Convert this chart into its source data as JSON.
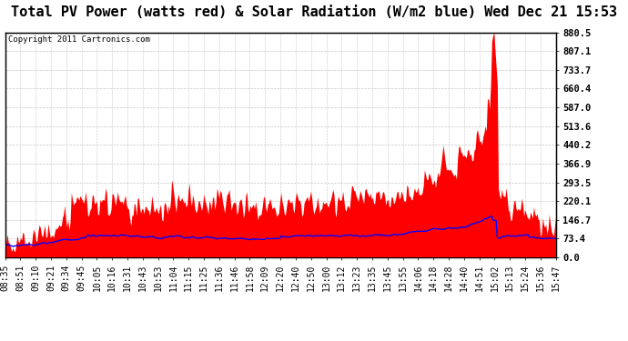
{
  "title": "Total PV Power (watts red) & Solar Radiation (W/m2 blue) Wed Dec 21 15:53",
  "copyright": "Copyright 2011 Cartronics.com",
  "y_max": 880.5,
  "y_min": 0.0,
  "y_ticks": [
    0.0,
    73.4,
    146.7,
    220.1,
    293.5,
    366.9,
    440.2,
    513.6,
    587.0,
    660.4,
    733.7,
    807.1,
    880.5
  ],
  "x_labels": [
    "08:35",
    "08:51",
    "09:10",
    "09:21",
    "09:34",
    "09:45",
    "10:05",
    "10:16",
    "10:31",
    "10:43",
    "10:53",
    "11:04",
    "11:15",
    "11:25",
    "11:36",
    "11:46",
    "11:58",
    "12:09",
    "12:20",
    "12:40",
    "12:50",
    "13:00",
    "13:12",
    "13:23",
    "13:35",
    "13:45",
    "13:55",
    "14:06",
    "14:18",
    "14:28",
    "14:40",
    "14:51",
    "15:02",
    "15:13",
    "15:24",
    "15:36",
    "15:47"
  ],
  "bg_color": "#ffffff",
  "grid_color": "#c8c8c8",
  "red_color": "#ff0000",
  "blue_color": "#0000ff",
  "title_fontsize": 11,
  "label_fontsize": 7.0
}
